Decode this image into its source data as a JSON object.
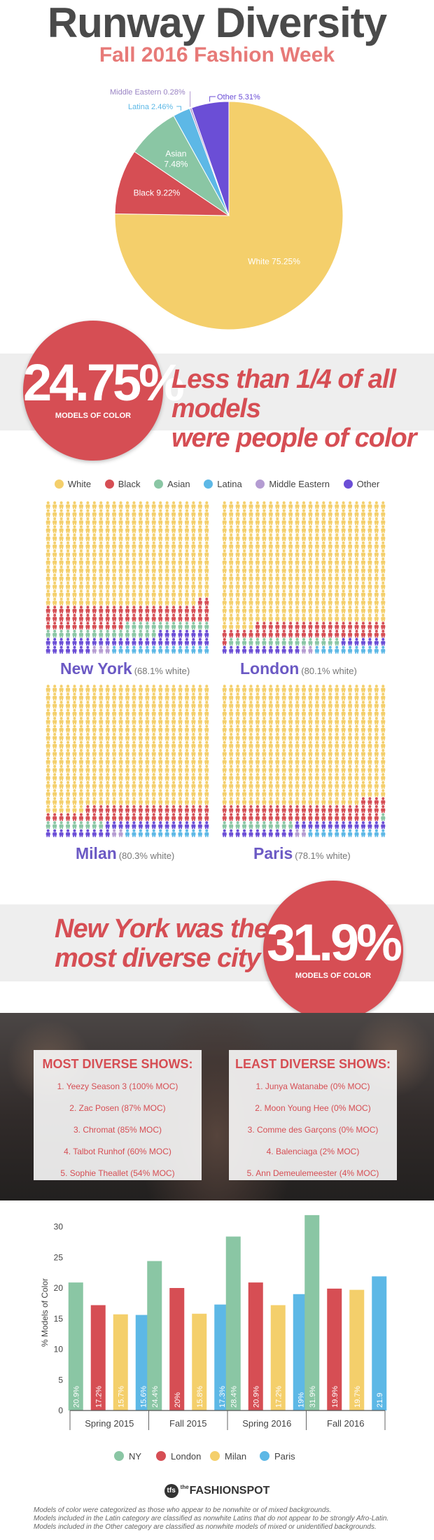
{
  "header": {
    "title": "Runway Diversity",
    "subtitle": "Fall 2016 Fashion Week"
  },
  "colors": {
    "White": "#f4cf6b",
    "Black": "#d64e54",
    "Asian": "#8ac6a4",
    "Latina": "#5db8e6",
    "Middle Eastern": "#b49cd2",
    "Other": "#6b4ed6"
  },
  "chart_data": [
    {
      "type": "pie",
      "title": "",
      "slices": [
        {
          "label": "White",
          "display": "White 75.25%",
          "value": 75.25
        },
        {
          "label": "Black",
          "display": "Black 9.22%",
          "value": 9.22
        },
        {
          "label": "Asian",
          "display": "Asian 7.48%",
          "value": 7.48
        },
        {
          "label": "Latina",
          "display": "Latina 2.46%",
          "value": 2.46
        },
        {
          "label": "Middle Eastern",
          "display": "Middle Eastern 0.28%",
          "value": 0.28
        },
        {
          "label": "Other",
          "display": "Other 5.31%",
          "value": 5.31
        }
      ]
    },
    {
      "type": "bar",
      "title": "",
      "xlabel": "",
      "ylabel": "% Models of Color",
      "ylim": [
        0,
        32
      ],
      "yticks": [
        0,
        5,
        10,
        15,
        20,
        25,
        30
      ],
      "categories": [
        "Spring 2015",
        "Fall 2015",
        "Spring 2016",
        "Fall 2016"
      ],
      "series": [
        {
          "name": "NY",
          "values": [
            20.9,
            24.4,
            28.4,
            31.9
          ],
          "labels": [
            "20.9%",
            "24.4%",
            "28.4%",
            "31.9%"
          ]
        },
        {
          "name": "London",
          "values": [
            17.2,
            20,
            20.9,
            19.9
          ],
          "labels": [
            "17.2%",
            "20%",
            "20.9%",
            "19.9%"
          ]
        },
        {
          "name": "Milan",
          "values": [
            15.7,
            15.8,
            17.2,
            19.7
          ],
          "labels": [
            "15.7%",
            "15.8%",
            "17.2%",
            "19.7%"
          ]
        },
        {
          "name": "Paris",
          "values": [
            15.6,
            17.3,
            19,
            21.9
          ],
          "labels": [
            "15.6%",
            "17.3%",
            "19%",
            "21.9"
          ]
        }
      ],
      "legend_position": "bottom"
    }
  ],
  "stat1": {
    "value": "24.75%",
    "caption": "MODELS OF COLOR",
    "headline_line1": "Less than 1/4 of all models",
    "headline_line2": "were people of color"
  },
  "legend": [
    "White",
    "Black",
    "Asian",
    "Latina",
    "Middle Eastern",
    "Other"
  ],
  "cities": [
    {
      "name": "New York",
      "note": "(68.1% white)",
      "white_pct": 68.1
    },
    {
      "name": "London",
      "note": "(80.1% white)",
      "white_pct": 80.1
    },
    {
      "name": "Milan",
      "note": "(80.3% white)",
      "white_pct": 80.3
    },
    {
      "name": "Paris",
      "note": "(78.1% white)",
      "white_pct": 78.1
    }
  ],
  "stat2": {
    "headline_line1": "New York was the",
    "headline_line2": "most diverse city",
    "value": "31.9%",
    "caption": "MODELS OF COLOR"
  },
  "shows": {
    "most_title": "MOST DIVERSE SHOWS:",
    "most": [
      "1. Yeezy Season 3 (100% MOC)",
      "2. Zac Posen (87% MOC)",
      "3. Chromat (85% MOC)",
      "4. Talbot Runhof (60% MOC)",
      "5. Sophie Theallet (54% MOC)"
    ],
    "least_title": "LEAST DIVERSE SHOWS:",
    "least": [
      "1. Junya Watanabe (0% MOC)",
      "2. Moon Young Hee (0% MOC)",
      "3. Comme des Garçons (0% MOC)",
      "4. Balenciaga (2% MOC)",
      "5. Ann Demeulemeester (4% MOC)"
    ]
  },
  "logo": {
    "mark": "tfs",
    "the": "the",
    "name": "FASHIONSPOT"
  },
  "footnotes": [
    "Models of color were categorized as those who appear to be nonwhite or of mixed backgrounds.",
    "Models included in the Latin category are classified as nonwhite Latins that do not appear to be strongly Afro-Latin.",
    "Models included in the Other category are classified as nonwhite models of mixed or unidentified backgrounds."
  ]
}
